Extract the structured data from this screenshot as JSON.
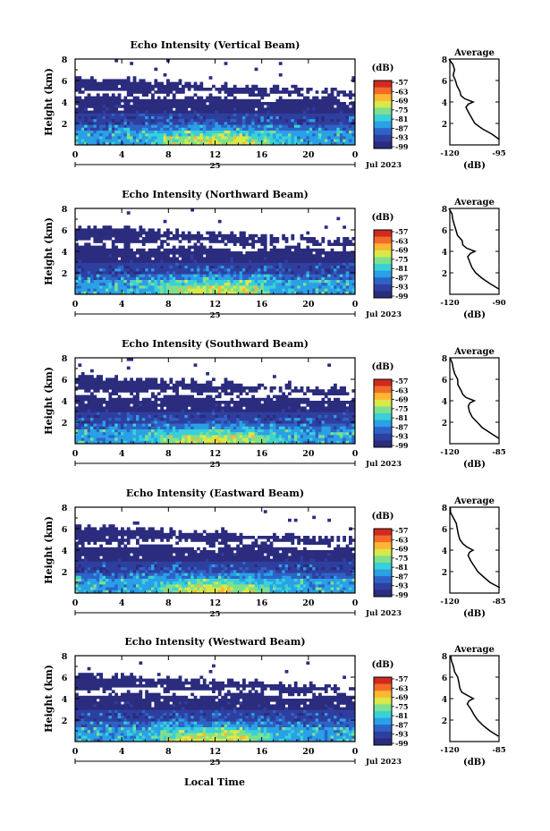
{
  "colors": {
    "cbar": [
      "#2b2c7e",
      "#2f3f9f",
      "#2e63c6",
      "#2aa0e6",
      "#39d1d8",
      "#7ee08d",
      "#d9e84a",
      "#ffb630",
      "#f26b2b",
      "#d12a1f"
    ],
    "profile_line": "#000000"
  },
  "shared": {
    "xlabel": "Local Time",
    "date_label": "Jul 2023",
    "day_label": "25",
    "cbar_unit": "(dB)",
    "avg_title": "Average",
    "avg_xlabel": "(dB)"
  },
  "chart_data": [
    {
      "type": "heatmap",
      "title": "Echo Intensity (Vertical Beam)",
      "ylabel": "Height (km)",
      "xlabel": "Local Time",
      "x_ticks": [
        "0",
        "4",
        "8",
        "12",
        "16",
        "20",
        "0"
      ],
      "y_ticks": [
        "2",
        "4",
        "6",
        "8"
      ],
      "xlim": [
        0,
        24
      ],
      "ylim": [
        0,
        8
      ],
      "colorbar": {
        "label": "(dB)",
        "ticks": [
          "-57",
          "-63",
          "-69",
          "-75",
          "-81",
          "-87",
          "-93",
          "-99"
        ],
        "range": [
          -99,
          -57
        ]
      },
      "profile": {
        "title": "Average",
        "xlabel": "(dB)",
        "x_ticks": [
          "-120",
          "-95"
        ],
        "y_ticks": [
          "2",
          "4",
          "6",
          "8"
        ],
        "xlim": [
          -120,
          -95
        ],
        "height_km": [
          0.5,
          1.0,
          1.5,
          2.0,
          2.5,
          3.0,
          3.5,
          3.8,
          4.0,
          4.3,
          4.6,
          5.0,
          5.5,
          6.0,
          6.5,
          7.0,
          7.5,
          8.0
        ],
        "db": [
          -95,
          -99,
          -103,
          -107,
          -109,
          -111,
          -112,
          -111,
          -108,
          -112,
          -114,
          -115,
          -116,
          -117,
          -118,
          -118,
          -119,
          -120
        ]
      }
    },
    {
      "type": "heatmap",
      "title": "Echo Intensity (Northward Beam)",
      "ylabel": "Height (km)",
      "xlabel": "Local Time",
      "x_ticks": [
        "0",
        "4",
        "8",
        "12",
        "16",
        "20",
        "0"
      ],
      "y_ticks": [
        "2",
        "4",
        "6",
        "8"
      ],
      "xlim": [
        0,
        24
      ],
      "ylim": [
        0,
        8
      ],
      "colorbar": {
        "label": "(dB)",
        "ticks": [
          "-57",
          "-63",
          "-69",
          "-75",
          "-81",
          "-87",
          "-93",
          "-99"
        ],
        "range": [
          -99,
          -57
        ]
      },
      "profile": {
        "title": "Average",
        "xlabel": "(dB)",
        "x_ticks": [
          "-120",
          "-90"
        ],
        "y_ticks": [
          "2",
          "4",
          "6",
          "8"
        ],
        "xlim": [
          -120,
          -90
        ],
        "height_km": [
          0.5,
          1.0,
          1.5,
          2.0,
          2.5,
          3.0,
          3.5,
          3.8,
          4.0,
          4.3,
          4.6,
          5.0,
          5.5,
          6.0,
          6.5,
          7.0,
          7.5,
          8.0
        ],
        "db": [
          -90,
          -95,
          -100,
          -104,
          -106,
          -108,
          -109,
          -108,
          -105,
          -110,
          -112,
          -113,
          -115,
          -116,
          -117,
          -118,
          -119,
          -120
        ]
      }
    },
    {
      "type": "heatmap",
      "title": "Echo Intensity (Southward Beam)",
      "ylabel": "Height (km)",
      "xlabel": "Local Time",
      "x_ticks": [
        "0",
        "4",
        "8",
        "12",
        "16",
        "20",
        "0"
      ],
      "y_ticks": [
        "2",
        "4",
        "6",
        "8"
      ],
      "xlim": [
        0,
        24
      ],
      "ylim": [
        0,
        8
      ],
      "colorbar": {
        "label": "(dB)",
        "ticks": [
          "-57",
          "-63",
          "-69",
          "-75",
          "-81",
          "-87",
          "-93",
          "-99"
        ],
        "range": [
          -99,
          -57
        ]
      },
      "profile": {
        "title": "Average",
        "xlabel": "(dB)",
        "x_ticks": [
          "-120",
          "-85"
        ],
        "y_ticks": [
          "2",
          "4",
          "6",
          "8"
        ],
        "xlim": [
          -120,
          -85
        ],
        "height_km": [
          0.5,
          1.0,
          1.5,
          2.0,
          2.5,
          3.0,
          3.5,
          3.8,
          4.0,
          4.3,
          4.6,
          5.0,
          5.5,
          6.0,
          6.5,
          7.0,
          7.5,
          8.0
        ],
        "db": [
          -85,
          -91,
          -97,
          -101,
          -104,
          -106,
          -107,
          -106,
          -103,
          -108,
          -111,
          -112,
          -114,
          -115,
          -116,
          -117,
          -118,
          -120
        ]
      }
    },
    {
      "type": "heatmap",
      "title": "Echo Intensity (Eastward Beam)",
      "ylabel": "Height (km)",
      "xlabel": "Local Time",
      "x_ticks": [
        "0",
        "4",
        "8",
        "12",
        "16",
        "20",
        "0"
      ],
      "y_ticks": [
        "2",
        "4",
        "6",
        "8"
      ],
      "xlim": [
        0,
        24
      ],
      "ylim": [
        0,
        8
      ],
      "colorbar": {
        "label": "(dB)",
        "ticks": [
          "-57",
          "-63",
          "-69",
          "-75",
          "-81",
          "-87",
          "-93",
          "-99"
        ],
        "range": [
          -99,
          -57
        ]
      },
      "profile": {
        "title": "Average",
        "xlabel": "(dB)",
        "x_ticks": [
          "-120",
          "-85"
        ],
        "y_ticks": [
          "2",
          "4",
          "6",
          "8"
        ],
        "xlim": [
          -120,
          -85
        ],
        "height_km": [
          0.5,
          1.0,
          1.5,
          2.0,
          2.5,
          3.0,
          3.5,
          3.8,
          4.0,
          4.3,
          4.6,
          5.0,
          5.5,
          6.0,
          6.5,
          7.0,
          7.5,
          8.0
        ],
        "db": [
          -85,
          -91,
          -96,
          -100,
          -103,
          -105,
          -107,
          -106,
          -103,
          -108,
          -111,
          -113,
          -114,
          -115,
          -116,
          -117,
          -119,
          -120
        ]
      }
    },
    {
      "type": "heatmap",
      "title": "Echo Intensity (Westward Beam)",
      "ylabel": "Height (km)",
      "xlabel": "Local Time",
      "x_ticks": [
        "0",
        "4",
        "8",
        "12",
        "16",
        "20",
        "0"
      ],
      "y_ticks": [
        "2",
        "4",
        "6",
        "8"
      ],
      "xlim": [
        0,
        24
      ],
      "ylim": [
        0,
        8
      ],
      "colorbar": {
        "label": "(dB)",
        "ticks": [
          "-57",
          "-63",
          "-69",
          "-75",
          "-81",
          "-87",
          "-93",
          "-99"
        ],
        "range": [
          -99,
          -57
        ]
      },
      "profile": {
        "title": "Average",
        "xlabel": "(dB)",
        "x_ticks": [
          "-120",
          "-85"
        ],
        "y_ticks": [
          "2",
          "4",
          "6",
          "8"
        ],
        "xlim": [
          -120,
          -85
        ],
        "height_km": [
          0.5,
          1.0,
          1.5,
          2.0,
          2.5,
          3.0,
          3.5,
          3.8,
          4.0,
          4.3,
          4.6,
          5.0,
          5.5,
          6.0,
          6.5,
          7.0,
          7.5,
          8.0
        ],
        "db": [
          -85,
          -91,
          -96,
          -100,
          -103,
          -105,
          -107,
          -106,
          -103,
          -108,
          -111,
          -113,
          -114,
          -115,
          -116,
          -117,
          -119,
          -120
        ]
      }
    }
  ]
}
